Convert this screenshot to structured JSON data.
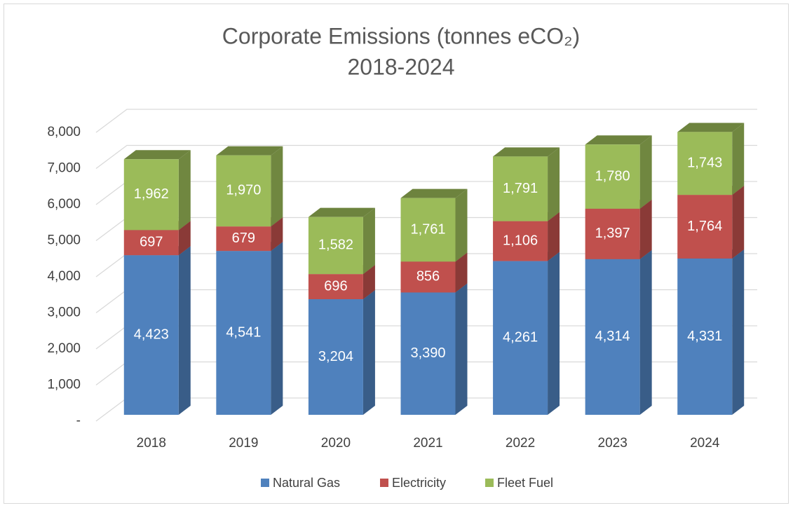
{
  "chart_data": {
    "type": "bar3d_stacked",
    "title": "Corporate Emissions (tonnes eCO₂)",
    "subtitle": "2018-2024",
    "categories": [
      "2018",
      "2019",
      "2020",
      "2021",
      "2022",
      "2023",
      "2024"
    ],
    "series": [
      {
        "name": "Natural Gas",
        "color": "#4f81bd",
        "values": [
          4423,
          4541,
          3204,
          3390,
          4261,
          4314,
          4331
        ],
        "value_labels": [
          "4,423",
          "4,541",
          "3,204",
          "3,390",
          "4,261",
          "4,314",
          "4,331"
        ]
      },
      {
        "name": "Electricity",
        "color": "#c0504d",
        "values": [
          697,
          679,
          696,
          856,
          1106,
          1397,
          1764
        ],
        "value_labels": [
          "697",
          "679",
          "696",
          "856",
          "1,106",
          "1,397",
          "1,764"
        ]
      },
      {
        "name": "Fleet Fuel",
        "color": "#9bbb59",
        "values": [
          1962,
          1970,
          1582,
          1761,
          1791,
          1780,
          1743
        ],
        "value_labels": [
          "1,962",
          "1,970",
          "1,582",
          "1,761",
          "1,791",
          "1,780",
          "1,743"
        ]
      }
    ],
    "ylim": [
      0,
      8000
    ],
    "yticks": [
      {
        "value": 0,
        "label": "-"
      },
      {
        "value": 1000,
        "label": "1,000"
      },
      {
        "value": 2000,
        "label": "2,000"
      },
      {
        "value": 3000,
        "label": "3,000"
      },
      {
        "value": 4000,
        "label": "4,000"
      },
      {
        "value": 5000,
        "label": "5,000"
      },
      {
        "value": 6000,
        "label": "6,000"
      },
      {
        "value": 7000,
        "label": "7,000"
      },
      {
        "value": 8000,
        "label": "8,000"
      }
    ],
    "grid": true,
    "legend": "bottom"
  }
}
